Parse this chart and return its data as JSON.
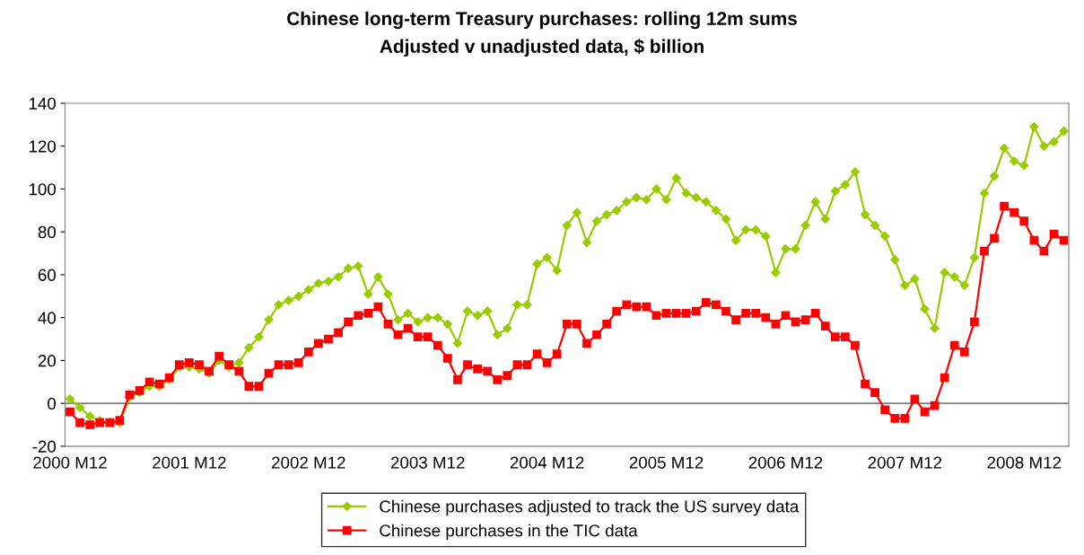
{
  "chart_data": {
    "type": "line",
    "title": "Chinese long-term Treasury purchases: rolling 12m sums",
    "subtitle": "Adjusted v unadjusted data, $ billion",
    "categories": [
      "2000 M12",
      null,
      null,
      null,
      null,
      null,
      null,
      null,
      null,
      null,
      null,
      null,
      "2001 M12",
      null,
      null,
      null,
      null,
      null,
      null,
      null,
      null,
      null,
      null,
      null,
      "2002 M12",
      null,
      null,
      null,
      null,
      null,
      null,
      null,
      null,
      null,
      null,
      null,
      "2003 M12",
      null,
      null,
      null,
      null,
      null,
      null,
      null,
      null,
      null,
      null,
      null,
      "2004 M12",
      null,
      null,
      null,
      null,
      null,
      null,
      null,
      null,
      null,
      null,
      null,
      "2005 M12",
      null,
      null,
      null,
      null,
      null,
      null,
      null,
      null,
      null,
      null,
      null,
      "2006 M12",
      null,
      null,
      null,
      null,
      null,
      null,
      null,
      null,
      null,
      null,
      null,
      "2007 M12",
      null,
      null,
      null,
      null,
      null,
      null,
      null,
      null,
      null,
      null,
      null,
      "2008 M12",
      null,
      null,
      null,
      null
    ],
    "series": [
      {
        "name": "Chinese purchases adjusted to track the US survey data",
        "color": "#99cc00",
        "marker": "diamond",
        "values": [
          2,
          -2,
          -6,
          -8,
          -9,
          -9,
          3,
          5,
          8,
          8,
          11,
          17,
          17,
          16,
          14,
          20,
          17,
          19,
          26,
          31,
          39,
          46,
          48,
          50,
          53,
          56,
          57,
          59,
          63,
          64,
          51,
          59,
          51,
          39,
          42,
          38,
          40,
          40,
          37,
          28,
          43,
          41,
          43,
          32,
          35,
          46,
          46,
          65,
          68,
          62,
          83,
          89,
          75,
          85,
          88,
          90,
          94,
          96,
          95,
          100,
          95,
          105,
          98,
          96,
          94,
          90,
          86,
          76,
          81,
          81,
          78,
          61,
          72,
          72,
          83,
          94,
          86,
          99,
          102,
          108,
          88,
          83,
          78,
          67,
          55,
          58,
          44,
          35,
          61,
          59,
          55,
          68,
          98,
          106,
          119,
          113,
          111,
          129,
          120,
          122,
          127
        ]
      },
      {
        "name": "Chinese purchases in the TIC data",
        "color": "#ff0000",
        "marker": "square",
        "values": [
          -4,
          -9,
          -10,
          -9,
          -9,
          -8,
          4,
          6,
          10,
          9,
          12,
          18,
          19,
          18,
          15,
          22,
          18,
          15,
          8,
          8,
          14,
          18,
          18,
          19,
          24,
          28,
          30,
          33,
          38,
          41,
          42,
          45,
          37,
          32,
          35,
          31,
          31,
          27,
          21,
          11,
          18,
          16,
          15,
          11,
          13,
          18,
          18,
          23,
          19,
          23,
          37,
          37,
          28,
          32,
          37,
          43,
          46,
          45,
          45,
          41,
          42,
          42,
          42,
          43,
          47,
          46,
          43,
          39,
          42,
          42,
          40,
          37,
          41,
          38,
          39,
          42,
          36,
          31,
          31,
          27,
          9,
          5,
          -3,
          -7,
          -7,
          2,
          -4,
          -1,
          12,
          27,
          24,
          38,
          71,
          77,
          92,
          89,
          85,
          76,
          71,
          79,
          76
        ]
      }
    ],
    "ylim": [
      -20,
      140
    ],
    "yticks": [
      -20,
      0,
      20,
      40,
      60,
      80,
      100,
      120,
      140
    ],
    "ref_lines": [
      {
        "axis": "y",
        "value": 0,
        "color": "#808080"
      }
    ],
    "grid": false,
    "legend": "bottom",
    "line_style": "solid"
  }
}
